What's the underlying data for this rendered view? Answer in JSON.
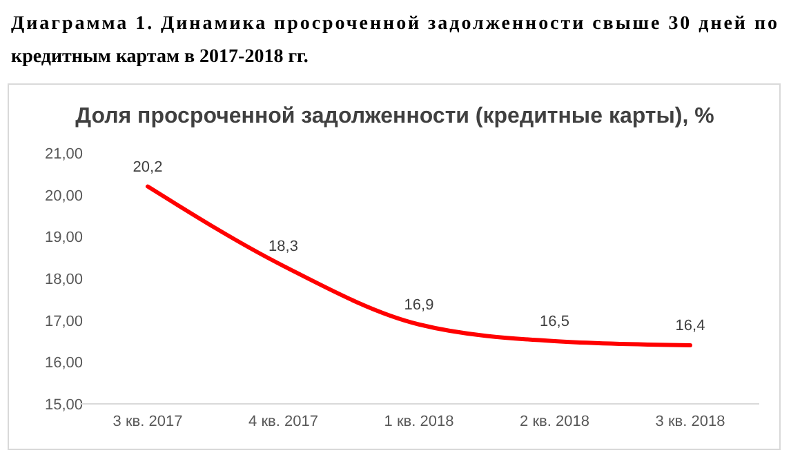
{
  "chart_data": {
    "type": "line",
    "title": "Диаграмма 1. Динамика просроченной задолженности свыше 30 дней по кредитным картам в 2017-2018 гг.",
    "subtitle": "Доля просроченной задолженности (кредитные карты), %",
    "categories": [
      "3 кв. 2017",
      "4 кв. 2017",
      "1 кв. 2018",
      "2 кв. 2018",
      "3 кв. 2018"
    ],
    "series": [
      {
        "color": "#ff0000",
        "values": [
          20.2,
          18.3,
          16.9,
          16.5,
          16.4
        ],
        "value_labels": [
          "20,2",
          "18,3",
          "16,9",
          "16,5",
          "16,4"
        ]
      }
    ],
    "ylim": [
      15,
      21
    ],
    "yticks": [
      {
        "value": 15,
        "label": "15,00"
      },
      {
        "value": 16,
        "label": "16,00"
      },
      {
        "value": 17,
        "label": "17,00"
      },
      {
        "value": 18,
        "label": "18,00"
      },
      {
        "value": 19,
        "label": "19,00"
      },
      {
        "value": 20,
        "label": "20,00"
      },
      {
        "value": 21,
        "label": "21,00"
      }
    ],
    "grid": false,
    "marker": "none",
    "line_style": "solid"
  }
}
